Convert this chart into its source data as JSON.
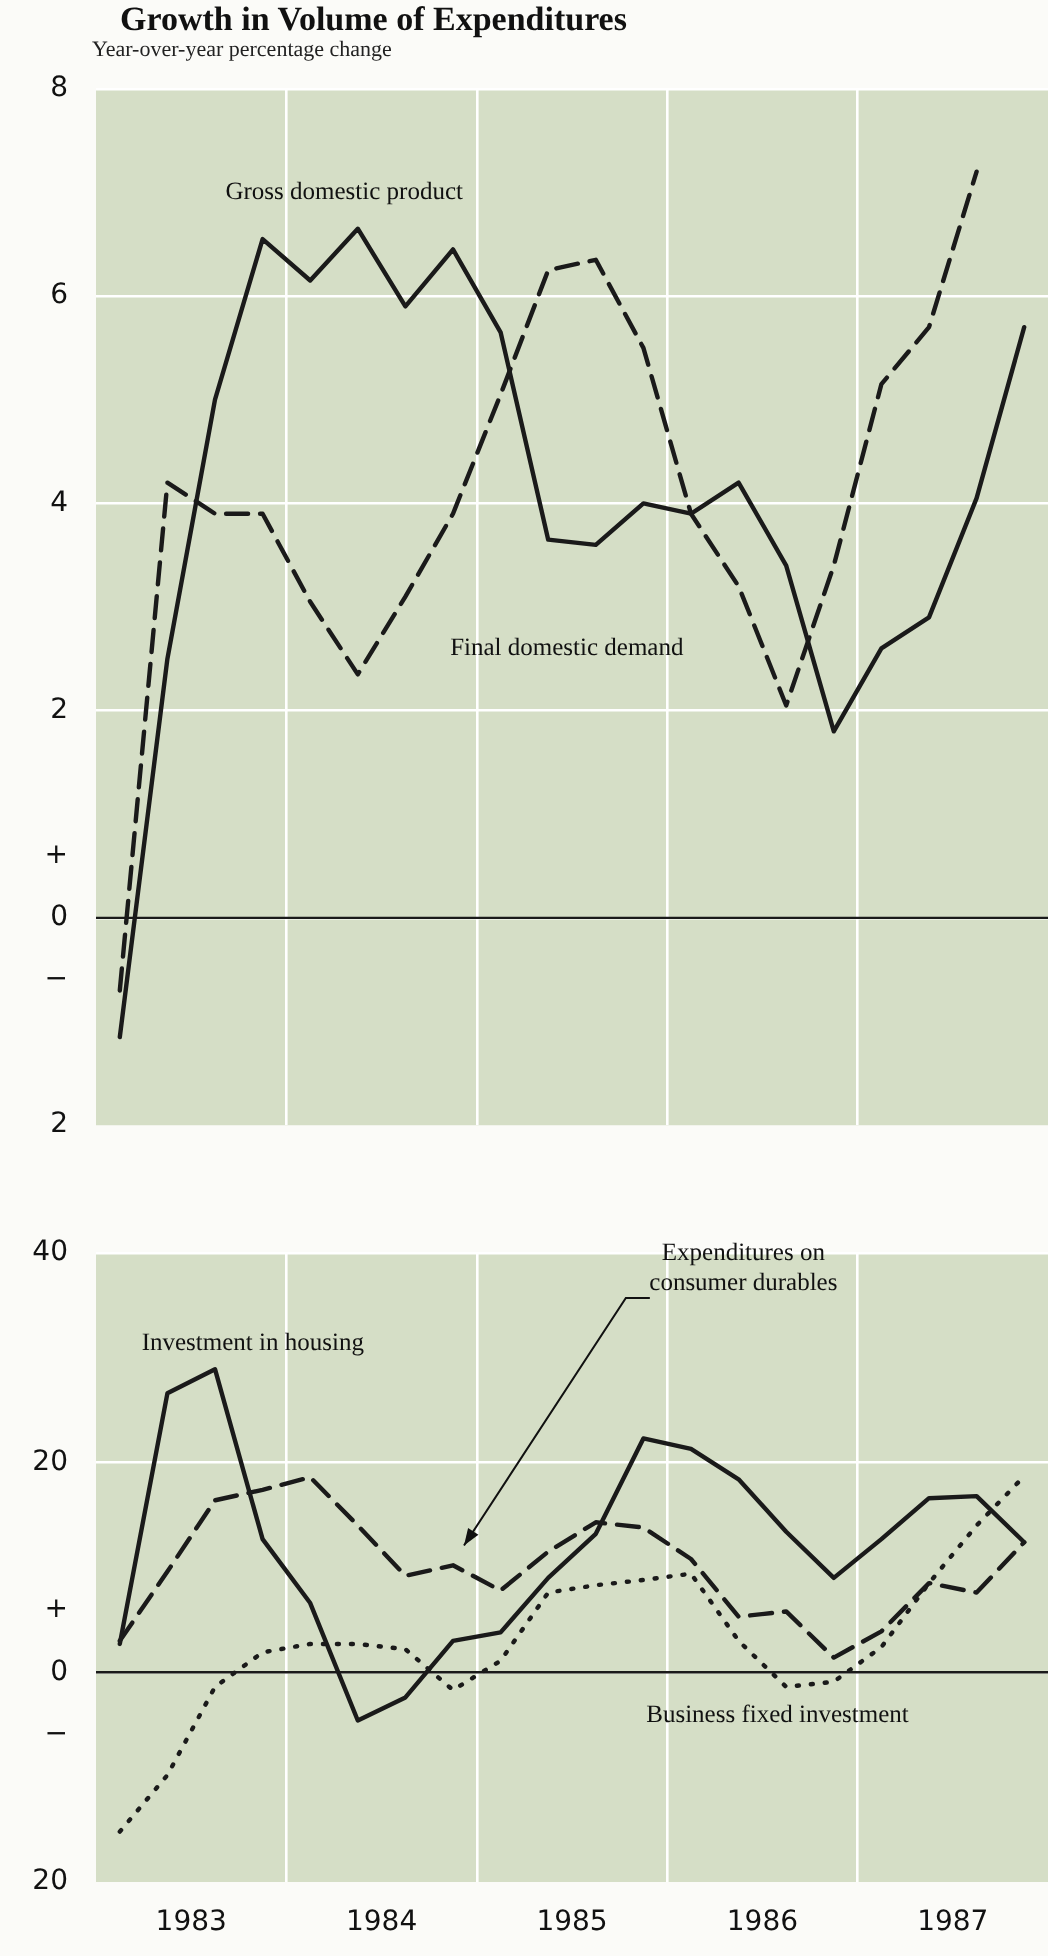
{
  "chart_data": [
    {
      "type": "line",
      "title": "Growth in Volume of Expenditures",
      "subtitle": "Year-over-year percentage change",
      "x": [
        1983.125,
        1983.375,
        1983.625,
        1983.875,
        1984.125,
        1984.375,
        1984.625,
        1984.875,
        1985.125,
        1985.375,
        1985.625,
        1985.875,
        1986.125,
        1986.375,
        1986.625,
        1986.875,
        1987.125,
        1987.375,
        1987.625,
        1987.875
      ],
      "series": [
        {
          "name": "Gross domestic product",
          "color": "#1a1a1a",
          "line_style": "solid",
          "values": [
            -1.15,
            2.5,
            5.0,
            6.55,
            6.15,
            6.65,
            5.9,
            6.45,
            5.65,
            3.65,
            3.6,
            4.0,
            3.9,
            4.2,
            3.4,
            1.8,
            2.6,
            2.9,
            4.05,
            5.7
          ]
        },
        {
          "name": "Final domestic demand",
          "color": "#1a1a1a",
          "line_style": "dashed",
          "values": [
            -0.7,
            4.2,
            3.9,
            3.9,
            3.05,
            2.35,
            3.1,
            3.9,
            5.05,
            6.25,
            6.35,
            5.5,
            3.9,
            3.2,
            2.05,
            3.4,
            5.15,
            5.7,
            7.2,
            null
          ]
        }
      ],
      "xlim": [
        1983,
        1988
      ],
      "xticks": [
        {
          "value": 1984,
          "label": null
        },
        {
          "value": 1985,
          "label": null
        },
        {
          "value": 1986,
          "label": null
        },
        {
          "value": 1987,
          "label": null
        }
      ],
      "ylim": [
        -2,
        8
      ],
      "yticks": [
        {
          "value": -2,
          "label": "2"
        },
        {
          "value": -0.6,
          "label": "−"
        },
        0,
        {
          "value": 0.6,
          "label": "+"
        },
        2,
        4,
        6,
        8
      ],
      "ref_lines": [
        {
          "axis": "y",
          "value": 0,
          "color": "#1a1a1a"
        }
      ],
      "grid": true,
      "tick_labels": "y",
      "marker": "none"
    },
    {
      "type": "line",
      "x": [
        1983.125,
        1983.375,
        1983.625,
        1983.875,
        1984.125,
        1984.375,
        1984.625,
        1984.875,
        1985.125,
        1985.375,
        1985.625,
        1985.875,
        1986.125,
        1986.375,
        1986.625,
        1986.875,
        1987.125,
        1987.375,
        1987.625,
        1987.875
      ],
      "series": [
        {
          "name": "Investment in housing",
          "color": "#1a1a1a",
          "line_style": "solid",
          "values": [
            2.7,
            26.6,
            28.9,
            12.7,
            6.6,
            -4.6,
            -2.4,
            3.0,
            3.8,
            9.0,
            13.2,
            22.3,
            21.3,
            18.4,
            13.4,
            9.0,
            12.7,
            16.6,
            16.8,
            12.4
          ]
        },
        {
          "name": "Expenditures on consumer durables",
          "color": "#1a1a1a",
          "line_style": "dashed",
          "values": [
            3.0,
            9.6,
            16.4,
            17.4,
            18.6,
            14.0,
            9.2,
            10.2,
            7.8,
            11.5,
            14.3,
            13.8,
            10.8,
            5.3,
            5.8,
            1.4,
            3.9,
            8.5,
            7.6,
            12.4
          ]
        },
        {
          "name": "Business fixed investment",
          "color": "#1a1a1a",
          "line_style": "dotted",
          "values": [
            -15.2,
            -9.8,
            -1.4,
            1.9,
            2.7,
            2.7,
            2.2,
            -1.7,
            1.1,
            7.6,
            8.3,
            8.8,
            9.4,
            3.0,
            -1.4,
            -0.9,
            2.4,
            8.5,
            14.0,
            18.7
          ]
        }
      ],
      "xlim": [
        1983,
        1988
      ],
      "xticks": [
        {
          "value": 1983.5,
          "label": "1983"
        },
        {
          "value": 1984,
          "label": null
        },
        {
          "value": 1984.5,
          "label": "1984"
        },
        {
          "value": 1985,
          "label": null
        },
        {
          "value": 1985.5,
          "label": "1985"
        },
        {
          "value": 1986,
          "label": null
        },
        {
          "value": 1986.5,
          "label": "1986"
        },
        {
          "value": 1987,
          "label": null
        },
        {
          "value": 1987.5,
          "label": "1987"
        }
      ],
      "ylim": [
        -20,
        40
      ],
      "yticks": [
        {
          "value": -20,
          "label": "20"
        },
        {
          "value": -6,
          "label": "−"
        },
        0,
        {
          "value": 6,
          "label": "+"
        },
        20,
        40
      ],
      "ref_lines": [
        {
          "axis": "y",
          "value": 0,
          "color": "#1a1a1a"
        }
      ],
      "grid": true,
      "marker": "none"
    }
  ]
}
